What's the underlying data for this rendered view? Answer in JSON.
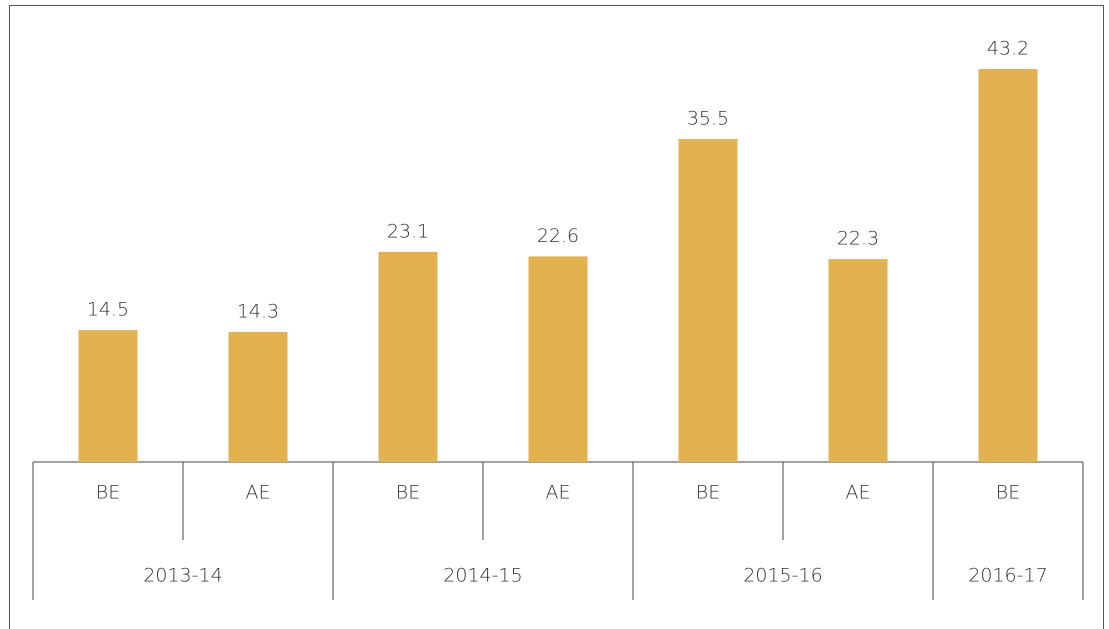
{
  "chart_data": {
    "type": "bar",
    "color": "#e2b250",
    "groups": [
      {
        "name": "2013-14",
        "categories": [
          "BE",
          "AE"
        ],
        "values": [
          14.5,
          14.3
        ]
      },
      {
        "name": "2014-15",
        "categories": [
          "BE",
          "AE"
        ],
        "values": [
          23.1,
          22.6
        ]
      },
      {
        "name": "2015-16",
        "categories": [
          "BE",
          "AE"
        ],
        "values": [
          35.5,
          22.3
        ]
      },
      {
        "name": "2016-17",
        "categories": [
          "BE"
        ],
        "values": [
          43.2
        ]
      }
    ]
  }
}
